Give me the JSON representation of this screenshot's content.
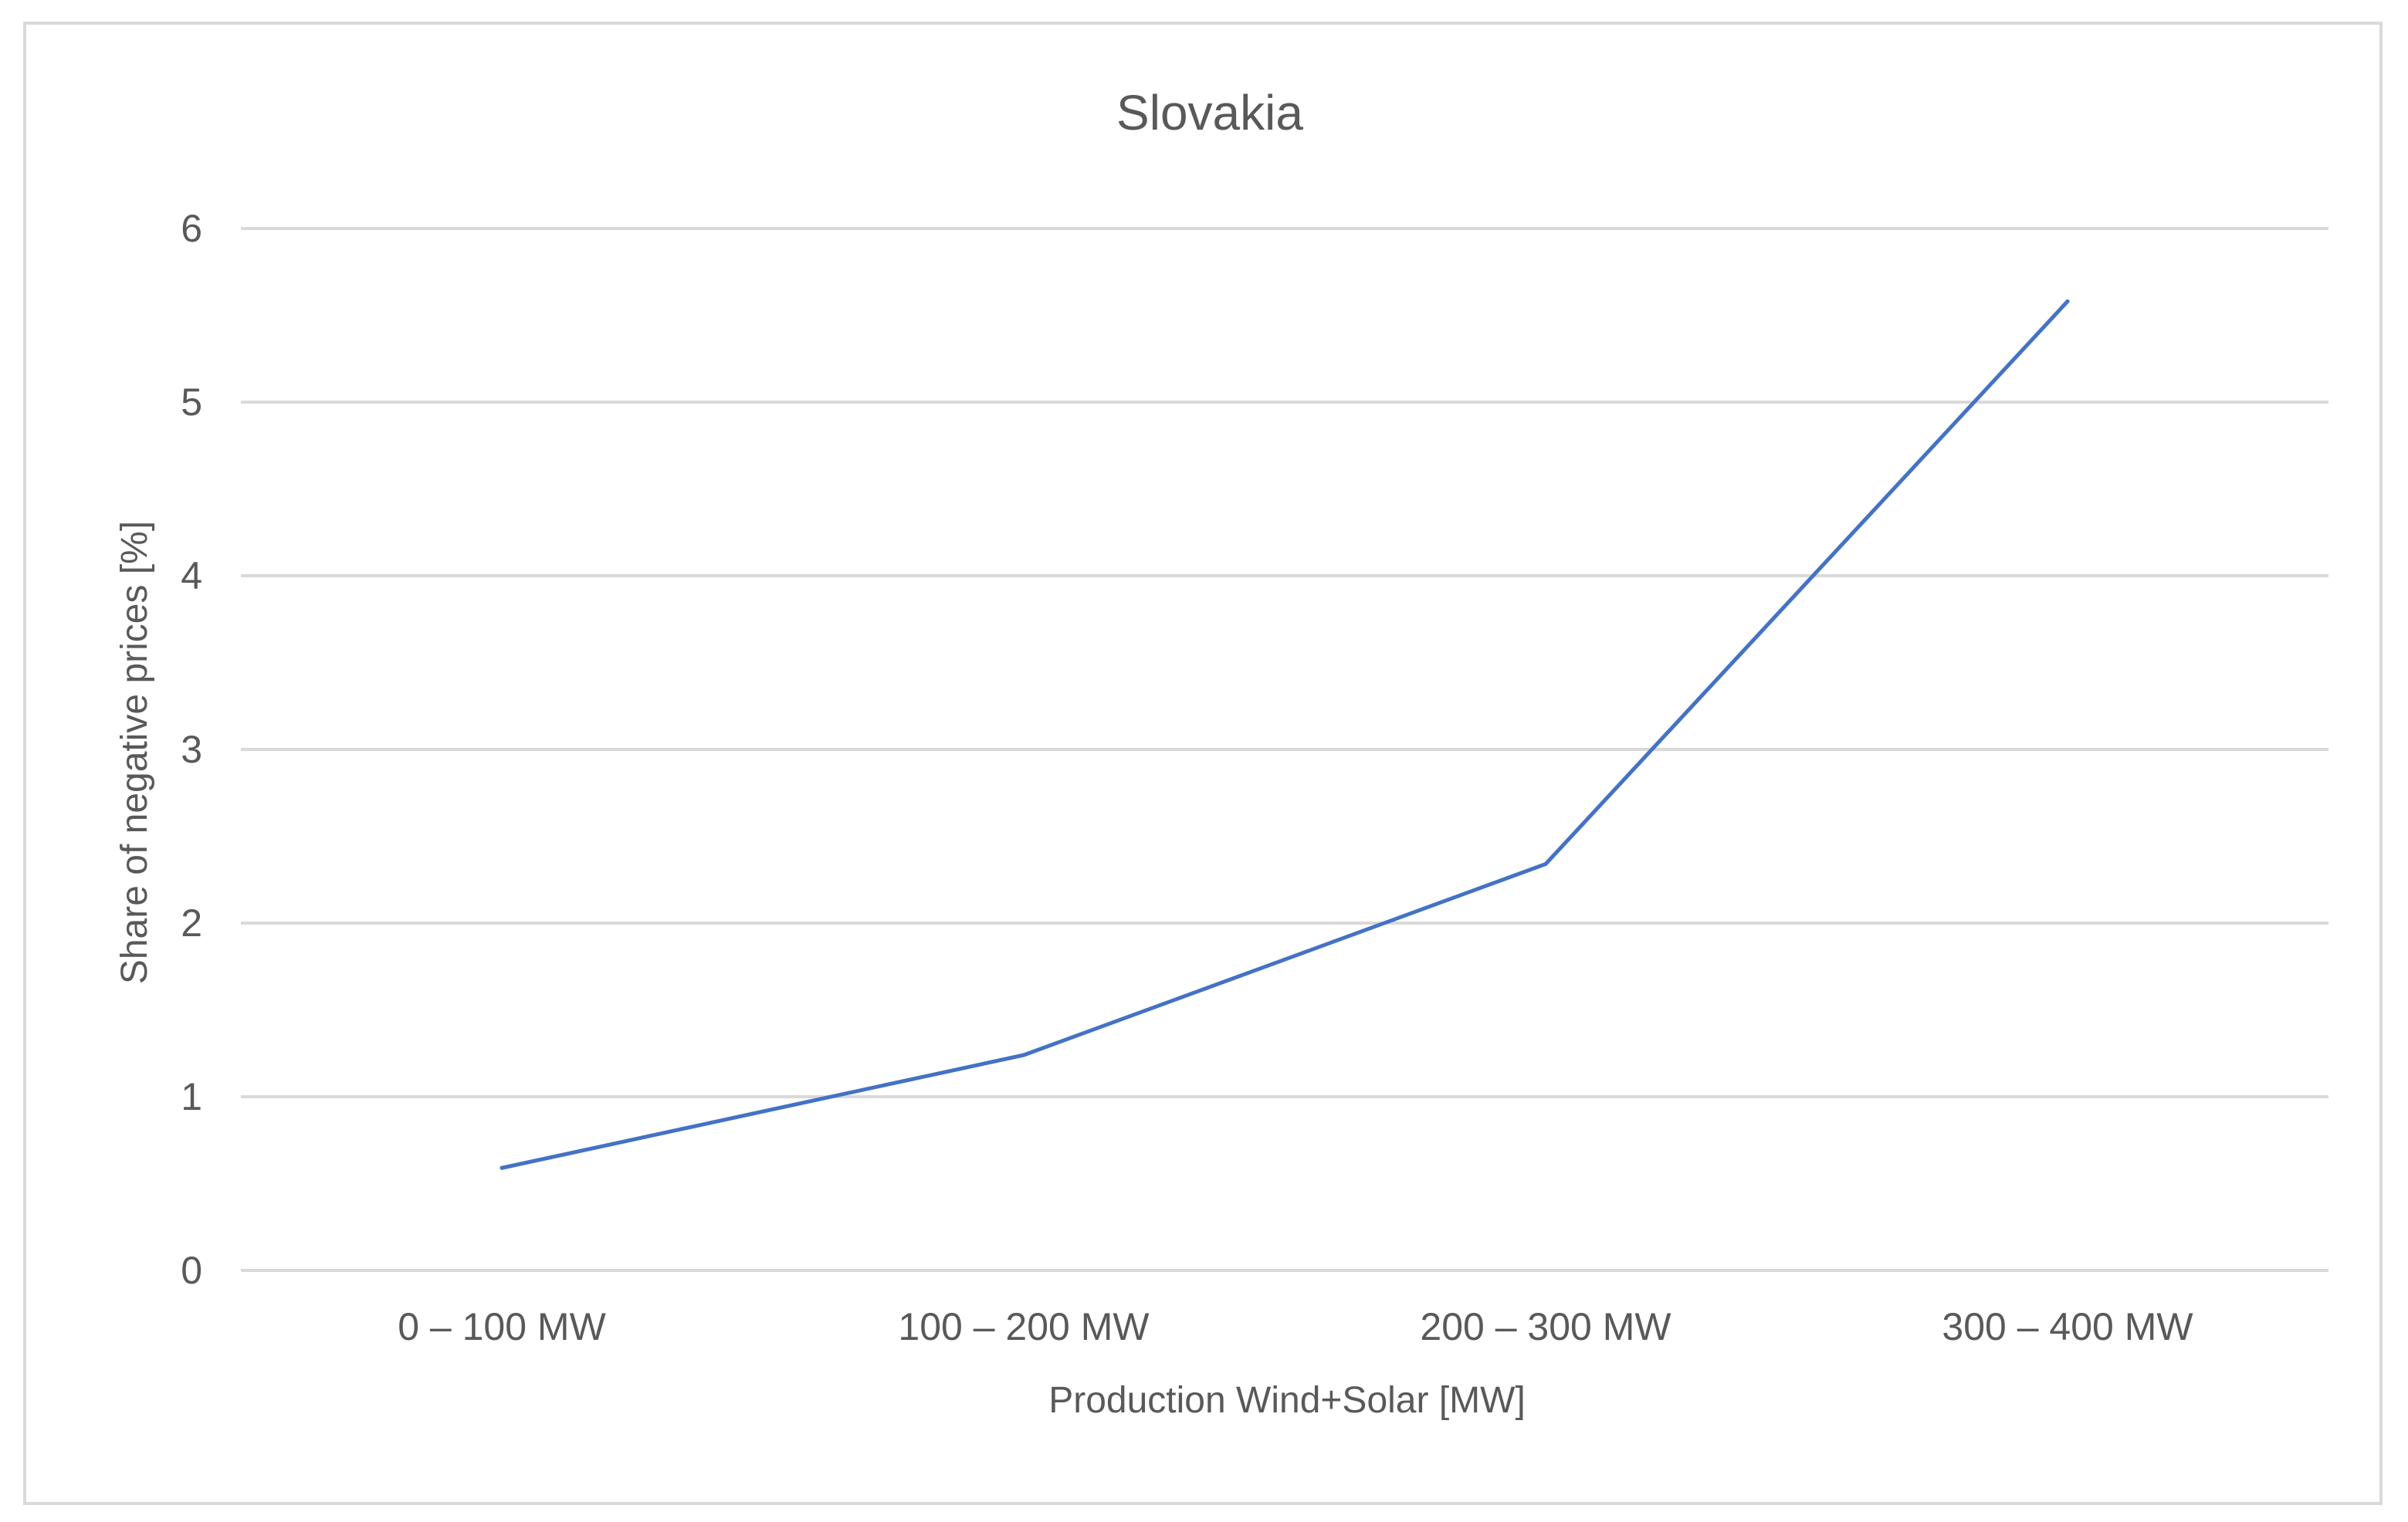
{
  "colors": {
    "line": "#4472c4",
    "grid": "#d9d9d9",
    "text": "#595959",
    "border": "#d9d9d9"
  },
  "chart_data": {
    "type": "line",
    "title": "Slovakia",
    "xlabel": "Production Wind+Solar [MW]",
    "ylabel": "Share of negative prices [%]",
    "categories": [
      "0 – 100 MW",
      "100 – 200 MW",
      "200 – 300 MW",
      "300 – 400 MW"
    ],
    "series": [
      {
        "values": [
          0.59,
          1.24,
          2.34,
          5.58
        ]
      }
    ],
    "ylim": [
      0,
      6
    ],
    "yticks": [
      "0",
      "1",
      "2",
      "3",
      "4",
      "5",
      "6"
    ],
    "grid": true,
    "legend": "none"
  }
}
